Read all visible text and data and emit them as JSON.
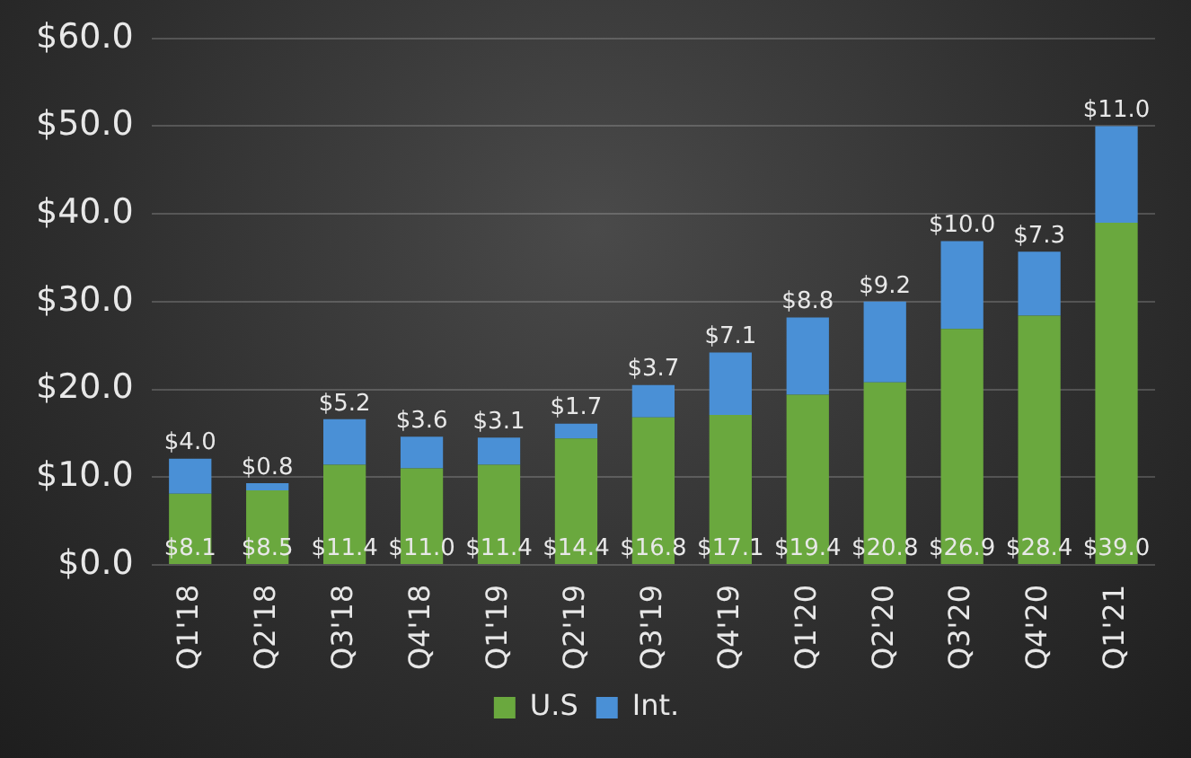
{
  "chart_data": {
    "type": "bar",
    "stacked": true,
    "categories": [
      "Q1'18",
      "Q2'18",
      "Q3'18",
      "Q4'18",
      "Q1'19",
      "Q2'19",
      "Q3'19",
      "Q4'19",
      "Q1'20",
      "Q2'20",
      "Q3'20",
      "Q4'20",
      "Q1'21"
    ],
    "series": [
      {
        "name": "U.S",
        "color": "#6aa83e",
        "values": [
          8.1,
          8.5,
          11.4,
          11.0,
          11.4,
          14.4,
          16.8,
          17.1,
          19.4,
          20.8,
          26.9,
          28.4,
          39.0
        ],
        "value_labels": [
          "$8.1",
          "$8.5",
          "$11.4",
          "$11.0",
          "$11.4",
          "$14.4",
          "$16.8",
          "$17.1",
          "$19.4",
          "$20.8",
          "$26.9",
          "$28.4",
          "$39.0"
        ]
      },
      {
        "name": "Int.",
        "color": "#4a90d6",
        "values": [
          4.0,
          0.8,
          5.2,
          3.6,
          3.1,
          1.7,
          3.7,
          7.1,
          8.8,
          9.2,
          10.0,
          7.3,
          11.0
        ],
        "value_labels": [
          "$4.0",
          "$0.8",
          "$5.2",
          "$3.6",
          "$3.1",
          "$1.7",
          "$3.7",
          "$7.1",
          "$8.8",
          "$9.2",
          "$10.0",
          "$7.3",
          "$11.0"
        ]
      }
    ],
    "ylim": [
      0,
      60
    ],
    "yticks": [
      {
        "value": 0,
        "label": "$0.0"
      },
      {
        "value": 10,
        "label": "$10.0"
      },
      {
        "value": 20,
        "label": "$20.0"
      },
      {
        "value": 30,
        "label": "$30.0"
      },
      {
        "value": 40,
        "label": "$40.0"
      },
      {
        "value": 50,
        "label": "$50.0"
      },
      {
        "value": 60,
        "label": "$60.0"
      }
    ],
    "grid": "y",
    "legend": "bottom"
  }
}
